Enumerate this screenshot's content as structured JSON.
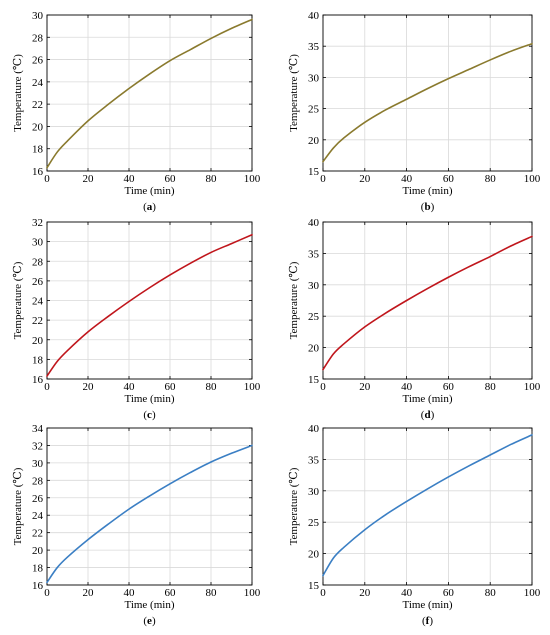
{
  "chart_data": [
    {
      "panel": "a",
      "type": "line",
      "xlabel": "Time (min)",
      "ylabel": "Temperature (℃)",
      "xlim": [
        0,
        100
      ],
      "ylim": [
        16,
        30
      ],
      "xticks": [
        0,
        20,
        40,
        60,
        80,
        100
      ],
      "yticks": [
        16,
        18,
        20,
        22,
        24,
        26,
        28,
        30
      ],
      "grid": true,
      "color": "#8a7a2e",
      "series": [
        {
          "x": [
            0,
            5,
            10,
            20,
            30,
            40,
            50,
            60,
            70,
            80,
            90,
            100
          ],
          "values": [
            16.3,
            17.7,
            18.7,
            20.5,
            22.0,
            23.4,
            24.7,
            25.9,
            26.9,
            27.9,
            28.8,
            29.6
          ]
        }
      ]
    },
    {
      "panel": "b",
      "type": "line",
      "xlabel": "Time (min)",
      "ylabel": "Temperature (℃)",
      "xlim": [
        0,
        100
      ],
      "ylim": [
        15,
        40
      ],
      "xticks": [
        0,
        20,
        40,
        60,
        80,
        100
      ],
      "yticks": [
        15,
        20,
        25,
        30,
        35,
        40
      ],
      "grid": true,
      "color": "#8a7a2e",
      "series": [
        {
          "x": [
            0,
            5,
            10,
            20,
            30,
            40,
            50,
            60,
            70,
            80,
            90,
            100
          ],
          "values": [
            16.5,
            18.7,
            20.3,
            22.8,
            24.8,
            26.5,
            28.2,
            29.8,
            31.3,
            32.8,
            34.2,
            35.4
          ]
        }
      ]
    },
    {
      "panel": "c",
      "type": "line",
      "xlabel": "Time (min)",
      "ylabel": "Temperature (℃)",
      "xlim": [
        0,
        100
      ],
      "ylim": [
        16,
        32
      ],
      "xticks": [
        0,
        20,
        40,
        60,
        80,
        100
      ],
      "yticks": [
        16,
        18,
        20,
        22,
        24,
        26,
        28,
        30,
        32
      ],
      "grid": true,
      "color": "#c0161c",
      "series": [
        {
          "x": [
            0,
            5,
            10,
            20,
            30,
            40,
            50,
            60,
            70,
            80,
            90,
            100
          ],
          "values": [
            16.3,
            17.8,
            18.9,
            20.8,
            22.4,
            23.9,
            25.3,
            26.6,
            27.8,
            28.9,
            29.8,
            30.7
          ]
        }
      ]
    },
    {
      "panel": "d",
      "type": "line",
      "xlabel": "Time (min)",
      "ylabel": "Temperature (℃)",
      "xlim": [
        0,
        100
      ],
      "ylim": [
        15,
        40
      ],
      "xticks": [
        0,
        20,
        40,
        60,
        80,
        100
      ],
      "yticks": [
        15,
        20,
        25,
        30,
        35,
        40
      ],
      "grid": true,
      "color": "#c0161c",
      "series": [
        {
          "x": [
            0,
            5,
            10,
            20,
            30,
            40,
            50,
            60,
            70,
            80,
            90,
            100
          ],
          "values": [
            16.5,
            19.0,
            20.6,
            23.3,
            25.5,
            27.5,
            29.4,
            31.2,
            32.9,
            34.5,
            36.2,
            37.7
          ]
        }
      ]
    },
    {
      "panel": "e",
      "type": "line",
      "xlabel": "Time (min)",
      "ylabel": "Temperature (℃)",
      "xlim": [
        0,
        100
      ],
      "ylim": [
        16,
        34
      ],
      "xticks": [
        0,
        20,
        40,
        60,
        80,
        100
      ],
      "yticks": [
        16,
        18,
        20,
        22,
        24,
        26,
        28,
        30,
        32,
        34
      ],
      "grid": true,
      "color": "#3b7fc4",
      "series": [
        {
          "x": [
            0,
            5,
            10,
            20,
            30,
            40,
            50,
            60,
            70,
            80,
            90,
            100
          ],
          "values": [
            16.3,
            18.0,
            19.2,
            21.2,
            23.0,
            24.7,
            26.2,
            27.6,
            28.9,
            30.1,
            31.1,
            32.0
          ]
        }
      ]
    },
    {
      "panel": "f",
      "type": "line",
      "xlabel": "Time (min)",
      "ylabel": "Temperature (℃)",
      "xlim": [
        0,
        100
      ],
      "ylim": [
        15,
        40
      ],
      "xticks": [
        0,
        20,
        40,
        60,
        80,
        100
      ],
      "yticks": [
        15,
        20,
        25,
        30,
        35,
        40
      ],
      "grid": true,
      "color": "#3b7fc4",
      "series": [
        {
          "x": [
            0,
            5,
            10,
            20,
            30,
            40,
            50,
            60,
            70,
            80,
            90,
            100
          ],
          "values": [
            16.5,
            19.3,
            21.0,
            23.8,
            26.2,
            28.3,
            30.3,
            32.2,
            34.0,
            35.7,
            37.4,
            38.9
          ]
        }
      ]
    }
  ],
  "captions": [
    "(a)",
    "(b)",
    "(c)",
    "(d)",
    "(e)",
    "(f)"
  ]
}
